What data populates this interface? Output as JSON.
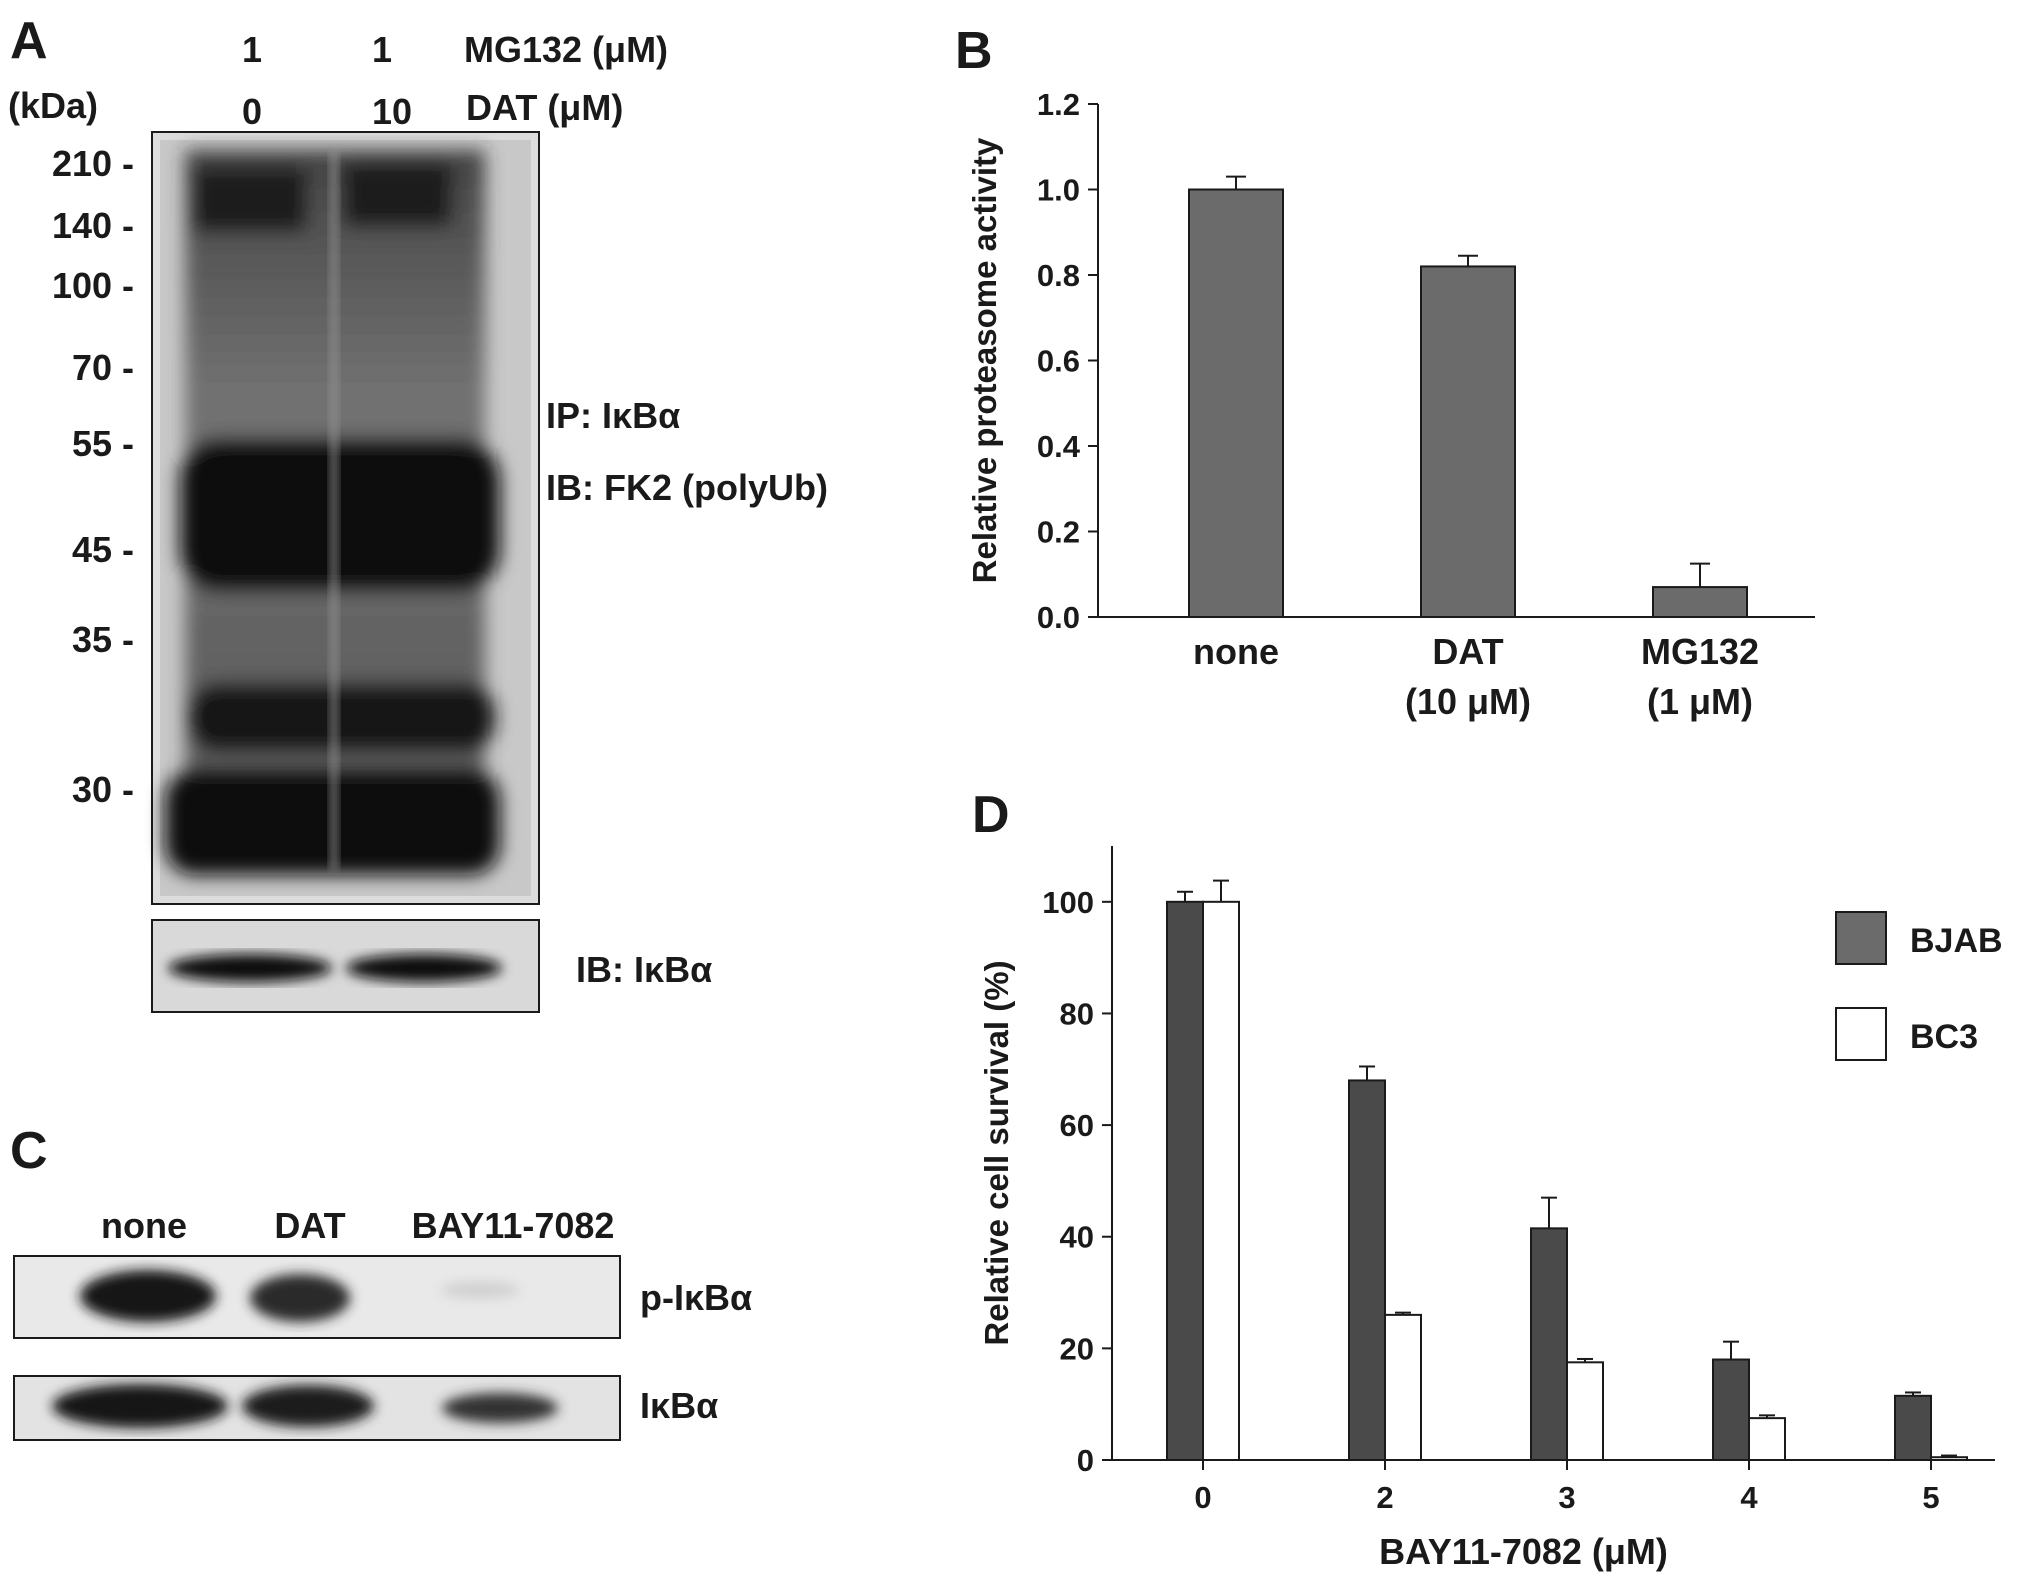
{
  "panels": {
    "A": {
      "letter": "A",
      "unit_label": "(kDa)",
      "conditions": [
        {
          "name": "MG132 (μM)",
          "values": [
            "1",
            "1"
          ]
        },
        {
          "name": "DAT (μM)",
          "values": [
            "0",
            "10"
          ]
        }
      ],
      "markers": [
        "210 -",
        "140 -",
        "100 -",
        "70 -",
        "55 -",
        "45 -",
        "35 -",
        "30 -"
      ],
      "blot_labels": [
        "IP: IκBα",
        "IB: FK2 (polyUb)"
      ],
      "lower_blot_label": "IB: IκBα"
    },
    "B": {
      "letter": "B"
    },
    "C": {
      "letter": "C",
      "lanes": [
        "none",
        "DAT",
        "BAY11-7082"
      ],
      "blot_labels": [
        "p-IκBα",
        "IκBα"
      ]
    },
    "D": {
      "letter": "D"
    }
  },
  "chart_data": [
    {
      "panel": "B",
      "type": "bar",
      "categories": [
        [
          "none"
        ],
        [
          "DAT",
          "(10 μM)"
        ],
        [
          "MG132",
          "(1 μM)"
        ]
      ],
      "values": [
        1.0,
        0.82,
        0.07
      ],
      "errors": [
        0.03,
        0.025,
        0.055
      ],
      "ylabel": "Relative proteasome activity",
      "xlabel": "",
      "ylim": [
        0,
        1.2
      ],
      "yticks": [
        "0.0",
        "0.2",
        "0.4",
        "0.6",
        "0.8",
        "1.0",
        "1.2"
      ],
      "bar_color": "#6b6b6b",
      "grid": false
    },
    {
      "panel": "D",
      "type": "bar",
      "categories": [
        "0",
        "2",
        "3",
        "4",
        "5"
      ],
      "series": [
        {
          "name": "BJAB",
          "values": [
            100,
            68,
            41.5,
            18,
            11.5
          ],
          "errors": [
            1.8,
            2.5,
            5.5,
            3.2,
            0.6
          ],
          "color": "#4a4a4a"
        },
        {
          "name": "BC3",
          "values": [
            100,
            26,
            17.5,
            7.5,
            0.5
          ],
          "errors": [
            3.8,
            0.4,
            0.6,
            0.5,
            0.3
          ],
          "color": "#ffffff"
        }
      ],
      "xlabel": "BAY11-7082 (μM)",
      "ylabel": "Relative cell survival (%)",
      "ylim": [
        0,
        110
      ],
      "yticks": [
        "0",
        "20",
        "40",
        "60",
        "80",
        "100"
      ],
      "legend_position": "right",
      "grid": false
    }
  ]
}
